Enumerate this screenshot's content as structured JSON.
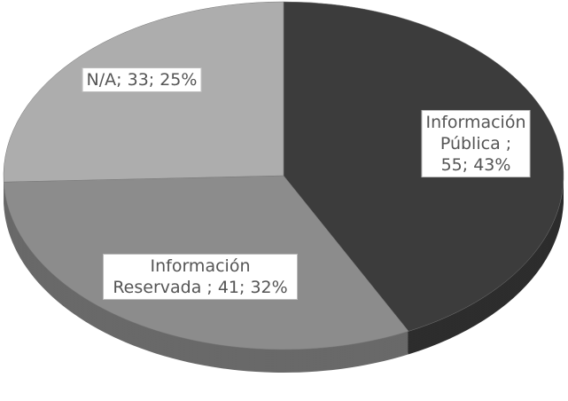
{
  "chart_data": {
    "type": "pie",
    "values": [
      55,
      41,
      33
    ],
    "value_labels": [
      "Información Pública ; 55; 43%",
      "Información Reservada ; 41; 32%",
      "N/A; 33; 25%"
    ],
    "colors": [
      "#3c3c3c",
      "#8c8c8c",
      "#adadad"
    ]
  }
}
